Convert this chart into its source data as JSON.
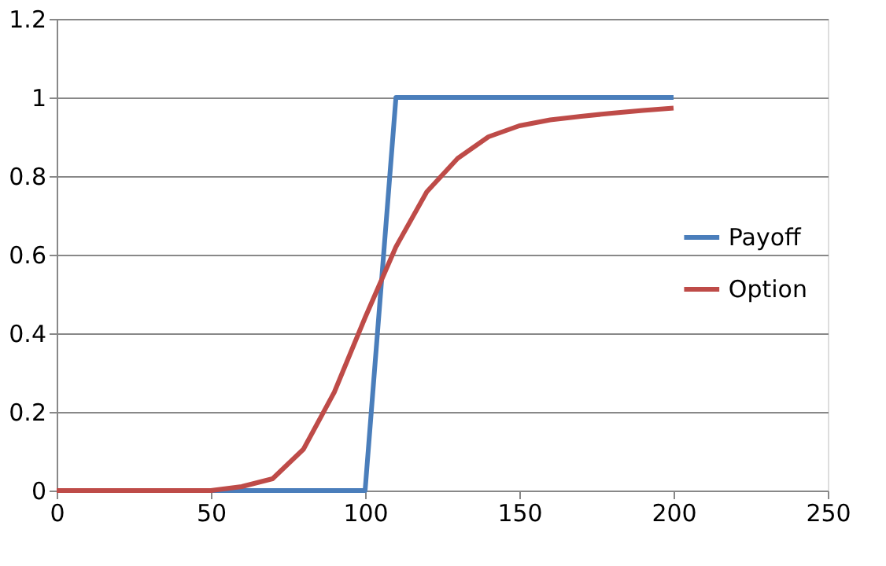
{
  "chart_data": {
    "type": "line",
    "x": [
      0,
      10,
      20,
      30,
      40,
      50,
      60,
      70,
      80,
      90,
      100,
      110,
      120,
      130,
      140,
      150,
      160,
      170,
      180,
      190,
      200
    ],
    "series": [
      {
        "name": "Payoff",
        "color": "#4a7ebb",
        "values": [
          null,
          null,
          null,
          null,
          0,
          0,
          0,
          0,
          0,
          0,
          0,
          1,
          1,
          1,
          1,
          1,
          1,
          1,
          1,
          1,
          1
        ]
      },
      {
        "name": "Option",
        "color": "#be4b48",
        "values": [
          0,
          0,
          0,
          0,
          0,
          0,
          0.01,
          0.03,
          0.105,
          0.25,
          0.44,
          0.62,
          0.76,
          0.845,
          0.9,
          0.928,
          0.943,
          0.952,
          0.96,
          0.967,
          0.973
        ]
      }
    ],
    "xlim": [
      0,
      250
    ],
    "xticks": [
      0,
      50,
      100,
      150,
      200,
      250
    ],
    "ylim": [
      0,
      1.2
    ],
    "yticks": [
      0,
      0.2,
      0.4,
      0.6,
      0.8,
      1,
      1.2
    ],
    "grid": "y",
    "legend": "right",
    "marker": "none",
    "line_style": "solid"
  }
}
